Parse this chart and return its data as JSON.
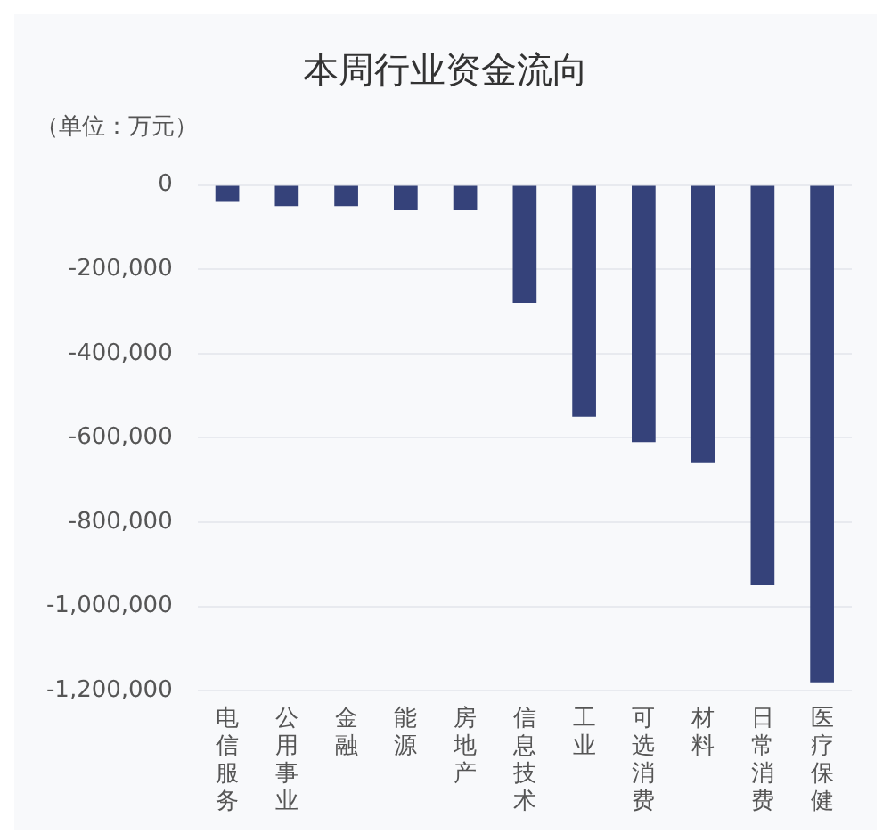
{
  "chart_data": {
    "type": "bar",
    "title": "本周行业资金流向",
    "ylabel": "（单位：万元）",
    "categories": [
      "电信服务",
      "公用事业",
      "金融",
      "能源",
      "房地产",
      "信息技术",
      "工业",
      "可选消费",
      "材料",
      "日常消费",
      "医疗保健"
    ],
    "values": [
      -40000,
      -50000,
      -50000,
      -60000,
      -60000,
      -280000,
      -550000,
      -610000,
      -660000,
      -950000,
      -1180000
    ],
    "color": "#35427a",
    "ylim": [
      -1200000,
      0
    ],
    "yticks": [
      {
        "value": -1200000,
        "label": "-1,200,000"
      },
      {
        "value": -1000000,
        "label": "-1,000,000"
      },
      {
        "value": -800000,
        "label": "-800,000"
      },
      {
        "value": -600000,
        "label": "-600,000"
      },
      {
        "value": -400000,
        "label": "-400,000"
      },
      {
        "value": -200000,
        "label": "-200,000"
      },
      0
    ],
    "grid": "y"
  }
}
